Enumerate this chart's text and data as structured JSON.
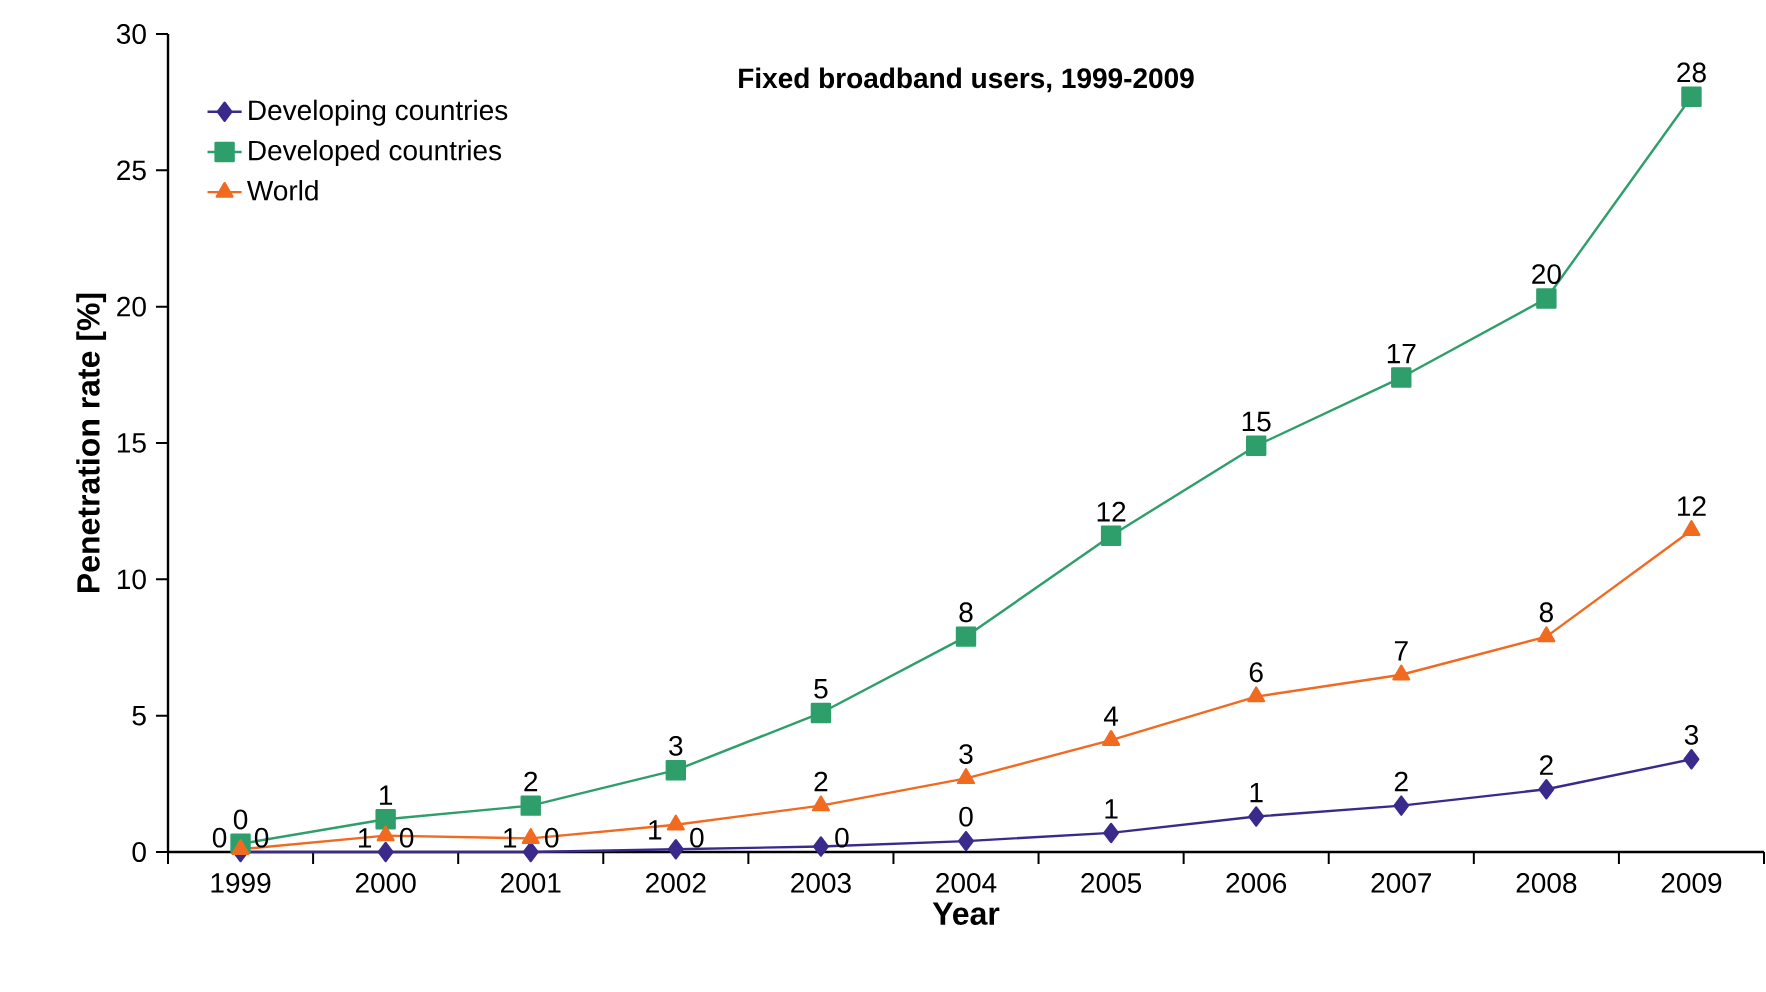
{
  "chart_data": {
    "type": "line",
    "title": "Fixed broadband users, 1999-2009",
    "xlabel": "Year",
    "ylabel": "Penetration rate [%]",
    "categories": [
      "1999",
      "2000",
      "2001",
      "2002",
      "2003",
      "2004",
      "2005",
      "2006",
      "2007",
      "2008",
      "2009"
    ],
    "series": [
      {
        "name": "Developing countries",
        "color": "#3a2a8c",
        "marker": "diamond",
        "values": [
          0.0,
          0.0,
          0.0,
          0.1,
          0.2,
          0.4,
          0.7,
          1.3,
          1.7,
          2.3,
          3.4
        ],
        "value_labels": [
          "0",
          "0",
          "0",
          "0",
          "0",
          "0",
          "1",
          "1",
          "2",
          "2",
          "3"
        ]
      },
      {
        "name": "Developed countries",
        "color": "#2e9e6a",
        "marker": "square",
        "values": [
          0.3,
          1.2,
          1.7,
          3.0,
          5.1,
          7.9,
          11.6,
          14.9,
          17.4,
          20.3,
          27.7
        ],
        "value_labels": [
          "0",
          "1",
          "2",
          "3",
          "5",
          "8",
          "12",
          "15",
          "17",
          "20",
          "28"
        ]
      },
      {
        "name": "World",
        "color": "#f06a20",
        "marker": "triangle",
        "values": [
          0.1,
          0.6,
          0.5,
          1.0,
          1.7,
          2.7,
          4.1,
          5.7,
          6.5,
          7.9,
          11.8
        ],
        "value_labels": [
          "0",
          "1",
          "1",
          "1",
          "2",
          "3",
          "4",
          "6",
          "7",
          "8",
          "12"
        ]
      }
    ],
    "ylim": [
      0,
      30
    ],
    "yticks": [
      0,
      5,
      10,
      15,
      20,
      25,
      30
    ],
    "grid": false,
    "legend": "top left",
    "line_style": "solid"
  }
}
